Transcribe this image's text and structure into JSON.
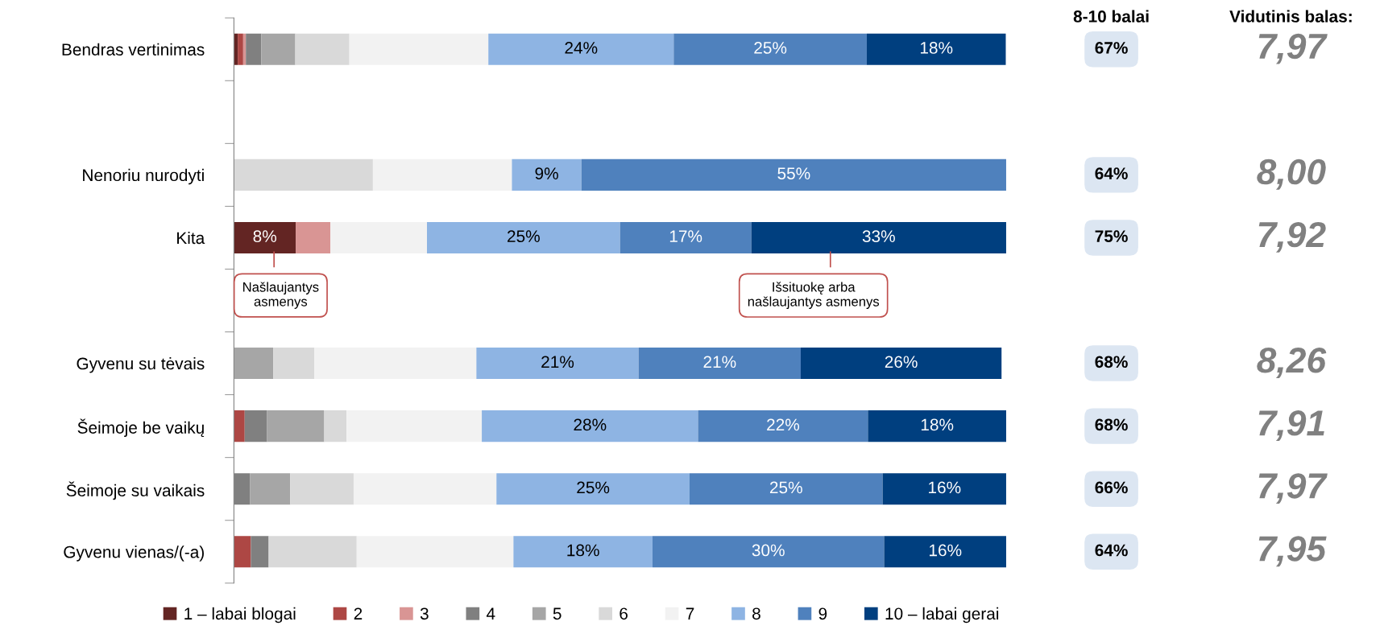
{
  "chart_data": {
    "type": "bar",
    "orientation": "horizontal",
    "stacked": true,
    "tick_labels": "y",
    "legend": "bottom",
    "xlim": [
      0,
      100
    ],
    "categories": [
      "Bendras vertinimas",
      null,
      "Nenoriu nurodyti",
      "Kita",
      null,
      "Gyvenu su tėvais",
      "Šeimoje be vaikų",
      "Šeimoje su vaikais",
      "Gyvenu vienas/(-a)"
    ],
    "series": [
      {
        "name": "1 – labai blogai",
        "color": "#632523",
        "values": [
          0.5,
          null,
          0,
          8,
          null,
          0,
          0,
          0,
          0
        ],
        "value_labels": [
          null,
          null,
          null,
          "8%",
          null,
          null,
          null,
          null,
          null
        ]
      },
      {
        "name": "2",
        "color": "#ad4744",
        "values": [
          0.7,
          null,
          0,
          0,
          null,
          0,
          1.4,
          0,
          2.2
        ],
        "value_labels": [
          null,
          null,
          null,
          null,
          null,
          null,
          null,
          null,
          null
        ]
      },
      {
        "name": "3",
        "color": "#d99594",
        "values": [
          0.35,
          null,
          0,
          4.5,
          null,
          0,
          0,
          0,
          0
        ],
        "value_labels": [
          null,
          null,
          null,
          null,
          null,
          null,
          null,
          null,
          null
        ]
      },
      {
        "name": "4",
        "color": "#808080",
        "values": [
          2,
          null,
          0,
          0,
          null,
          0,
          2.9,
          2.1,
          2.3
        ],
        "value_labels": [
          null,
          null,
          null,
          null,
          null,
          null,
          null,
          null,
          null
        ]
      },
      {
        "name": "5",
        "color": "#a6a6a6",
        "values": [
          4.4,
          null,
          0,
          0,
          null,
          5.1,
          7.4,
          5.2,
          0
        ],
        "value_labels": [
          null,
          null,
          null,
          null,
          null,
          null,
          null,
          null,
          null
        ]
      },
      {
        "name": "6",
        "color": "#d9d9d9",
        "values": [
          7,
          null,
          18,
          0,
          null,
          5.3,
          2.9,
          8.2,
          11.4
        ],
        "value_labels": [
          null,
          null,
          null,
          null,
          null,
          null,
          null,
          null,
          null
        ]
      },
      {
        "name": "7",
        "color": "#f2f2f2",
        "values": [
          18,
          null,
          18,
          12.5,
          null,
          21,
          17.5,
          18.5,
          20.3
        ],
        "value_labels": [
          null,
          null,
          null,
          null,
          null,
          null,
          null,
          null,
          null
        ]
      },
      {
        "name": "8",
        "color": "#8eb4e3",
        "values": [
          24,
          null,
          9,
          25,
          null,
          21,
          28,
          25,
          18
        ],
        "value_labels": [
          "24%",
          null,
          "9%",
          "25%",
          null,
          "21%",
          "28%",
          "25%",
          "18%"
        ]
      },
      {
        "name": "9",
        "color": "#4f81bd",
        "values": [
          25,
          null,
          55,
          17,
          null,
          21,
          22,
          25,
          30
        ],
        "value_labels": [
          "25%",
          null,
          "55%",
          "17%",
          null,
          "21%",
          "22%",
          "25%",
          "30%"
        ]
      },
      {
        "name": "10 – labai gerai",
        "color": "#003f7f",
        "values": [
          18,
          null,
          0,
          33,
          null,
          26,
          18,
          16,
          16
        ],
        "value_labels": [
          "18%",
          null,
          null,
          "33%",
          null,
          "26%",
          "18%",
          "16%",
          "16%"
        ]
      }
    ],
    "annotations": [
      "8-10 balai",
      "Vidutinis balas:",
      "67%",
      "7,97",
      "64%",
      "8,00",
      "75%",
      "7,92",
      "68%",
      "8,26",
      "68%",
      "7,91",
      "66%",
      "7,97",
      "64%",
      "7,95",
      "Našlaujantys\nasmenys",
      "Išsituokę arba\nnašlaujantys asmenys"
    ]
  }
}
